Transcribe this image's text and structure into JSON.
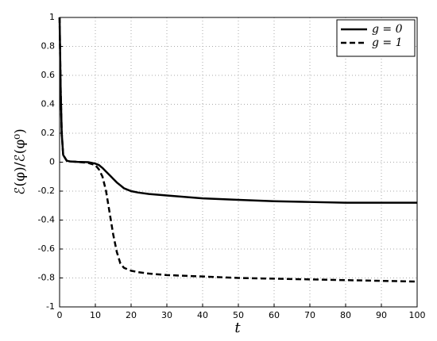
{
  "chart_data": {
    "type": "line",
    "x_label": "t",
    "y_label": "ℰ(φ)/ℰ(φ⁰)",
    "x": [
      0,
      0.3,
      0.6,
      1,
      2,
      3,
      5,
      8,
      10,
      11,
      12,
      13,
      14,
      15,
      16,
      17,
      18,
      20,
      22,
      25,
      30,
      40,
      50,
      60,
      70,
      80,
      90,
      100
    ],
    "series": [
      {
        "name": "g = 0",
        "color": "#000000",
        "style": "solid",
        "values": [
          1,
          0.5,
          0.2,
          0.05,
          0.01,
          0.005,
          0.002,
          0,
          -0.01,
          -0.02,
          -0.04,
          -0.065,
          -0.09,
          -0.115,
          -0.14,
          -0.16,
          -0.18,
          -0.2,
          -0.21,
          -0.22,
          -0.23,
          -0.25,
          -0.26,
          -0.27,
          -0.275,
          -0.28,
          -0.28,
          -0.28
        ]
      },
      {
        "name": "g = 1",
        "color": "#000000",
        "style": "dashed",
        "values": [
          1,
          0.5,
          0.2,
          0.05,
          0.01,
          0.005,
          0.002,
          -0.005,
          -0.02,
          -0.05,
          -0.1,
          -0.2,
          -0.35,
          -0.5,
          -0.62,
          -0.7,
          -0.73,
          -0.75,
          -0.76,
          -0.77,
          -0.78,
          -0.79,
          -0.8,
          -0.805,
          -0.81,
          -0.815,
          -0.82,
          -0.825
        ]
      }
    ],
    "xlim": [
      0,
      100
    ],
    "xticks": [
      0,
      10,
      20,
      30,
      40,
      50,
      60,
      70,
      80,
      90,
      100
    ],
    "ylim": [
      -1,
      1
    ],
    "yticks": [
      -1,
      -0.8,
      -0.6,
      -0.4,
      -0.2,
      0,
      0.2,
      0.4,
      0.6,
      0.8,
      1
    ],
    "grid": true,
    "legend": "top-right"
  }
}
